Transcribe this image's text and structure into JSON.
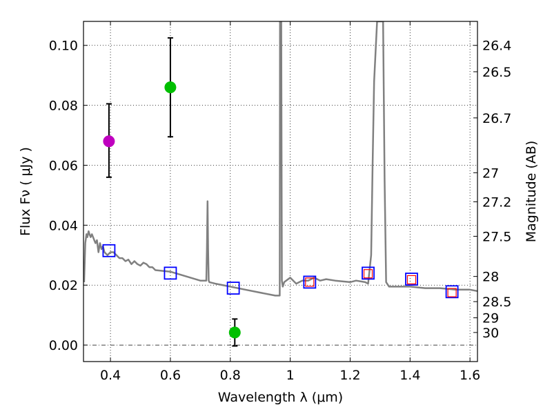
{
  "chart_data": {
    "type": "scatter",
    "xlabel": "Wavelength  λ (μm)",
    "ylabel": "Flux  Fν  ( μJy )",
    "y2label": "Magnitude (AB)",
    "xlim": [
      0.31,
      1.625
    ],
    "ylim": [
      -0.0055,
      0.108
    ],
    "x_ticks": [
      0.4,
      0.6,
      0.8,
      1.0,
      1.2,
      1.4,
      1.6
    ],
    "x_tick_labels": [
      "0.4",
      "0.6",
      "0.8",
      "1",
      "1.2",
      "1.4",
      "1.6"
    ],
    "y_ticks": [
      0.0,
      0.02,
      0.04,
      0.06,
      0.08,
      0.1
    ],
    "y_tick_labels": [
      "0.00",
      "0.02",
      "0.04",
      "0.06",
      "0.08",
      "0.10"
    ],
    "y2_ticks": [
      {
        "label": "26.4",
        "flux": 0.1
      },
      {
        "label": "26.5",
        "flux": 0.0912
      },
      {
        "label": "26.7",
        "flux": 0.0758
      },
      {
        "label": "27",
        "flux": 0.0575
      },
      {
        "label": "27.2",
        "flux": 0.0478
      },
      {
        "label": "27.5",
        "flux": 0.0363
      },
      {
        "label": "28",
        "flux": 0.0229
      },
      {
        "label": "28.5",
        "flux": 0.0145
      },
      {
        "label": "29",
        "flux": 0.0091
      },
      {
        "label": "30",
        "flux": 0.0042
      }
    ],
    "colors": {
      "model": "#808080",
      "detection_magenta": "#bf00bf",
      "detection_green": "#00bf00",
      "synthetic_blue": "#0000ff",
      "synthetic_red": "#ff0000",
      "errorbar": "#000000"
    },
    "series": [
      {
        "name": "model spectrum",
        "kind": "line",
        "color": "#808080",
        "x": [
          0.312,
          0.316,
          0.32,
          0.323,
          0.327,
          0.33,
          0.334,
          0.338,
          0.342,
          0.346,
          0.35,
          0.355,
          0.36,
          0.365,
          0.37,
          0.375,
          0.38,
          0.39,
          0.4,
          0.41,
          0.42,
          0.43,
          0.44,
          0.45,
          0.46,
          0.47,
          0.48,
          0.49,
          0.5,
          0.51,
          0.52,
          0.53,
          0.54,
          0.55,
          0.6,
          0.65,
          0.7,
          0.72,
          0.722,
          0.724,
          0.726,
          0.728,
          0.73,
          0.75,
          0.8,
          0.85,
          0.9,
          0.95,
          0.965,
          0.966,
          0.968,
          0.97,
          0.972,
          0.975,
          0.98,
          1.0,
          1.02,
          1.04,
          1.06,
          1.08,
          1.1,
          1.12,
          1.15,
          1.2,
          1.22,
          1.25,
          1.26,
          1.27,
          1.275,
          1.28,
          1.29,
          1.3,
          1.31,
          1.315,
          1.32,
          1.33,
          1.35,
          1.4,
          1.45,
          1.5,
          1.55,
          1.6,
          1.625
        ],
        "y": [
          0.021,
          0.034,
          0.037,
          0.036,
          0.038,
          0.037,
          0.036,
          0.037,
          0.036,
          0.035,
          0.034,
          0.035,
          0.031,
          0.034,
          0.032,
          0.033,
          0.031,
          0.03,
          0.031,
          0.031,
          0.03,
          0.029,
          0.029,
          0.028,
          0.0285,
          0.027,
          0.028,
          0.027,
          0.0265,
          0.0275,
          0.027,
          0.026,
          0.026,
          0.025,
          0.0245,
          0.023,
          0.0215,
          0.0215,
          0.032,
          0.048,
          0.032,
          0.0215,
          0.021,
          0.0205,
          0.0195,
          0.0185,
          0.0175,
          0.0165,
          0.0165,
          0.108,
          0.108,
          0.108,
          0.0215,
          0.0195,
          0.021,
          0.0225,
          0.0205,
          0.0215,
          0.0215,
          0.0225,
          0.0215,
          0.022,
          0.0215,
          0.021,
          0.0215,
          0.021,
          0.0205,
          0.03,
          0.06,
          0.088,
          0.108,
          0.108,
          0.108,
          0.055,
          0.021,
          0.0195,
          0.0195,
          0.0195,
          0.019,
          0.019,
          0.0185,
          0.0185,
          0.018
        ]
      },
      {
        "name": "observed detections",
        "kind": "errorbar",
        "points": [
          {
            "x": 0.395,
            "y": 0.068,
            "err_low": 0.012,
            "err_high": 0.0125,
            "color": "#bf00bf"
          },
          {
            "x": 0.6,
            "y": 0.086,
            "err_low": 0.0165,
            "err_high": 0.0165,
            "color": "#00bf00"
          },
          {
            "x": 0.815,
            "y": 0.0042,
            "err_low": 0.0045,
            "err_high": 0.0045,
            "color": "#00bf00"
          }
        ]
      },
      {
        "name": "synthetic photometry",
        "kind": "square",
        "color": "#0000ff",
        "x": [
          0.395,
          0.6,
          0.81,
          1.065,
          1.26,
          1.405,
          1.54
        ],
        "y": [
          0.0315,
          0.024,
          0.019,
          0.021,
          0.024,
          0.022,
          0.0178
        ]
      },
      {
        "name": "synthetic photometry (NIR)",
        "kind": "square",
        "color": "#ff0000",
        "x": [
          1.065,
          1.26,
          1.405,
          1.54
        ],
        "y": [
          0.021,
          0.0238,
          0.0218,
          0.0175
        ]
      }
    ]
  }
}
